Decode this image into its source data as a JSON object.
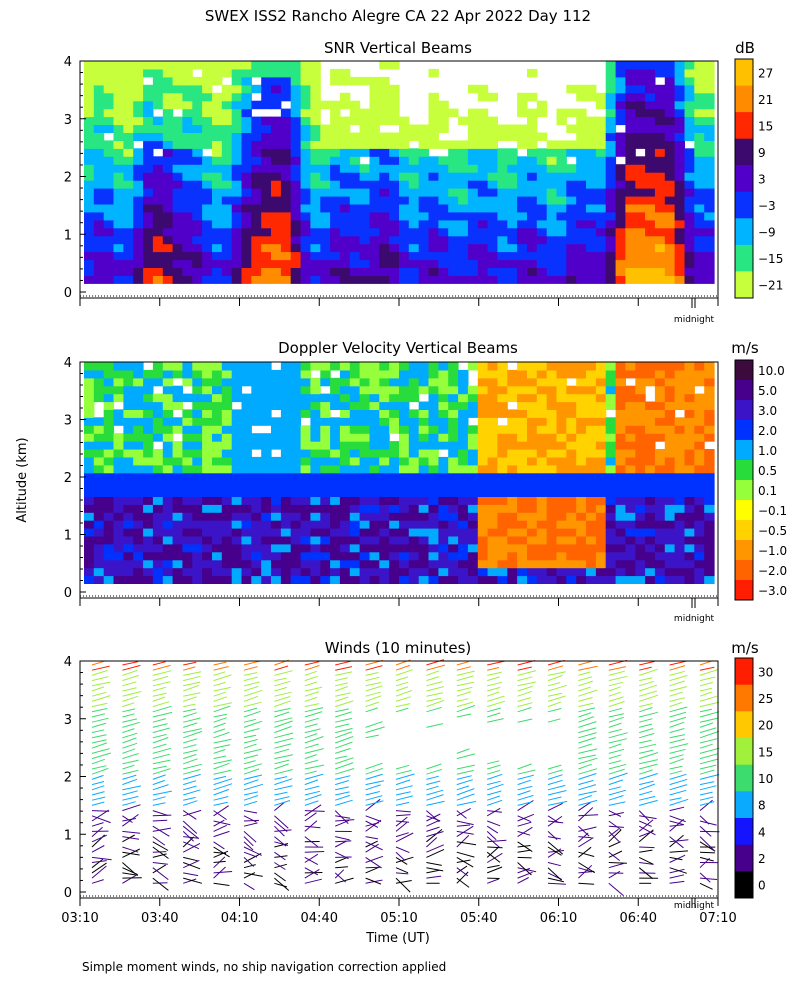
{
  "title": "SWEX ISS2 Rancho Alegre CA  22 Apr 2022 Day 112",
  "ylabel": "Altitude (km)",
  "xlabel": "Time (UT)",
  "footnote": "Simple moment winds, no ship navigation correction applied",
  "midnight_label": "midnight",
  "y_ticks": [
    "0",
    "1",
    "2",
    "3",
    "4"
  ],
  "x_ticks": [
    "03:10",
    "03:40",
    "04:10",
    "04:40",
    "05:10",
    "05:40",
    "06:10",
    "06:40",
    "07:10"
  ],
  "panels": {
    "snr": {
      "title": "SNR Vertical Beams",
      "unit": "dB",
      "scale_labels": [
        "27",
        "21",
        "15",
        "9",
        "3",
        "−3",
        "−9",
        "−15",
        "−21"
      ],
      "scale_colors": [
        "#ffc000",
        "#ff8c00",
        "#ff2800",
        "#3c0a6e",
        "#5000c8",
        "#0a32ff",
        "#00b4ff",
        "#28e682",
        "#c8ff3c"
      ]
    },
    "doppler": {
      "title": "Doppler Velocity Vertical Beams",
      "unit": "m/s",
      "scale_labels": [
        "10.0",
        "5.0",
        "3.0",
        "2.0",
        "1.0",
        "0.5",
        "0.1",
        "−0.1",
        "−0.5",
        "−1.0",
        "−2.0",
        "−3.0"
      ],
      "scale_colors": [
        "#3c0a3c",
        "#46008c",
        "#3c14c8",
        "#0032ff",
        "#00aaff",
        "#28dc3c",
        "#96ff3c",
        "#ffff00",
        "#ffd200",
        "#ff9600",
        "#ff6400",
        "#ff1e00"
      ]
    },
    "winds": {
      "title": "Winds (10 minutes)",
      "unit": "m/s",
      "scale_labels": [
        "30",
        "25",
        "20",
        "15",
        "10",
        "8",
        "4",
        "2",
        "0"
      ],
      "scale_colors": [
        "#ff1e00",
        "#ff7800",
        "#ffc800",
        "#a0f03c",
        "#3cdc6e",
        "#0aaaff",
        "#1414ff",
        "#46008c",
        "#000000"
      ]
    }
  },
  "chart_data": [
    {
      "type": "heatmap",
      "title": "SNR Vertical Beams",
      "xlabel": "",
      "ylabel": "Altitude (km)",
      "x_categories": [
        "03:10",
        "03:40",
        "04:10",
        "04:40",
        "05:10",
        "05:40",
        "06:10",
        "06:40",
        "07:10"
      ],
      "ylim": [
        0,
        4
      ],
      "colorbar": {
        "unit": "dB",
        "levels": [
          27,
          21,
          15,
          9,
          3,
          -3,
          -9,
          -15,
          -21
        ]
      },
      "annotations": [
        "midnight"
      ]
    },
    {
      "type": "heatmap",
      "title": "Doppler Velocity Vertical Beams",
      "xlabel": "",
      "ylabel": "Altitude (km)",
      "x_categories": [
        "03:10",
        "03:40",
        "04:10",
        "04:40",
        "05:10",
        "05:40",
        "06:10",
        "06:40",
        "07:10"
      ],
      "ylim": [
        0,
        4
      ],
      "colorbar": {
        "unit": "m/s",
        "levels": [
          10.0,
          5.0,
          3.0,
          2.0,
          1.0,
          0.5,
          0.1,
          -0.1,
          -0.5,
          -1.0,
          -2.0,
          -3.0
        ]
      },
      "annotations": [
        "midnight"
      ]
    },
    {
      "type": "scatter",
      "title": "Winds (10 minutes)",
      "xlabel": "Time (UT)",
      "ylabel": "Altitude (km)",
      "x_categories": [
        "03:10",
        "03:40",
        "04:10",
        "04:40",
        "05:10",
        "05:40",
        "06:10",
        "06:40",
        "07:10"
      ],
      "ylim": [
        0,
        4
      ],
      "colorbar": {
        "unit": "m/s",
        "levels": [
          30,
          25,
          20,
          15,
          10,
          8,
          4,
          2,
          0
        ]
      },
      "annotations": [
        "midnight"
      ]
    }
  ]
}
